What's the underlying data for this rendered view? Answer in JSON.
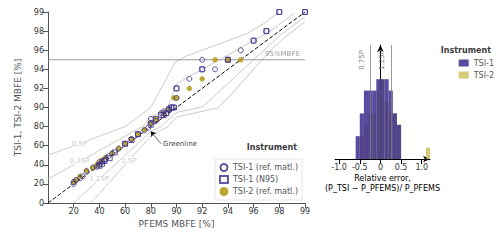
{
  "chart_data": [
    {
      "type": "scatter",
      "xlabel": "PFEMS MBFE [%]",
      "ylabel": "TSI-1, TSI-2 MBFE [%]",
      "xlim": [
        0,
        99
      ],
      "ylim": [
        0,
        99
      ],
      "xticks": [
        20,
        40,
        60,
        80,
        90,
        92,
        94,
        96,
        98,
        99
      ],
      "yticks": [
        0,
        20,
        40,
        60,
        80,
        90,
        92,
        94,
        96,
        98,
        99
      ],
      "grid": false,
      "legend": "lower right",
      "legend_title": "Instrument",
      "series": [
        {
          "name": "TSI-1 (ref. matl.)",
          "color": "#3b2d8e",
          "marker": "circle_open",
          "x": [
            20,
            20,
            22,
            25,
            27,
            30,
            35,
            38,
            40,
            40,
            42,
            44,
            45,
            47,
            50,
            55,
            60,
            65,
            70,
            75,
            78,
            80,
            80,
            82,
            84,
            85,
            86,
            87,
            88,
            89,
            90,
            90,
            91,
            92,
            92,
            93,
            94,
            95,
            96,
            97,
            98,
            99
          ],
          "values": [
            20,
            22,
            24,
            26,
            28,
            33,
            37,
            38,
            40,
            43,
            43,
            45,
            46,
            49,
            52,
            57,
            62,
            67,
            72,
            76,
            79,
            82,
            84,
            83,
            87,
            88,
            87,
            89,
            90,
            90,
            92,
            91,
            93,
            94,
            95,
            94,
            95,
            96,
            97,
            98,
            99,
            99
          ]
        },
        {
          "name": "TSI-1 (N95)",
          "color": "#3b2d8e",
          "marker": "square_open",
          "x": [
            40,
            42,
            44,
            48,
            52,
            60,
            65,
            70,
            80,
            82,
            84,
            85,
            86,
            87,
            88,
            89,
            90,
            92,
            94,
            96,
            97,
            98,
            99
          ],
          "values": [
            39,
            41,
            44,
            47,
            53,
            62,
            66,
            72,
            81,
            84,
            86,
            86,
            87,
            89,
            90,
            90,
            92,
            94,
            95,
            97,
            98,
            99,
            99
          ]
        },
        {
          "name": "TSI-2 (ref. matl.)",
          "color": "#b8a020",
          "marker": "circle",
          "x": [
            20,
            22,
            25,
            30,
            35,
            38,
            40,
            42,
            45,
            50,
            55,
            60,
            65,
            70,
            75,
            80,
            82,
            85,
            87,
            89,
            90,
            91,
            92,
            93,
            94,
            95
          ],
          "values": [
            22,
            24,
            28,
            34,
            37,
            40,
            42,
            45,
            48,
            52,
            57,
            62,
            67,
            72,
            77,
            82,
            84,
            87,
            89,
            91,
            91,
            92,
            93,
            95,
            95,
            95
          ]
        }
      ],
      "reference_lines": [
        {
          "x": [
            0,
            99
          ],
          "values": [
            0,
            99
          ],
          "color": "#000000",
          "line_style": "dashed"
        },
        {
          "label": "0.5P",
          "x": [
            0,
            98
          ],
          "values": [
            50,
            99
          ],
          "color": "#bbbbbb"
        },
        {
          "label": "0.75P",
          "x": [
            0,
            98.6
          ],
          "values": [
            25,
            98.95
          ],
          "color": "#bbbbbb"
        },
        {
          "label": "1.25P",
          "x": [
            20,
            99
          ],
          "values": [
            0,
            98.75
          ],
          "color": "#bbbbbb"
        },
        {
          "label": "1.5P",
          "x": [
            33.4,
            99
          ],
          "values": [
            0.1,
            98.5
          ],
          "color": "#bbbbbb"
        }
      ],
      "hlines": [
        {
          "y": 95,
          "color": "#808080",
          "label": "95%MBFE"
        }
      ],
      "annotations": [
        {
          "text": "Greenline",
          "x": 80,
          "line": "1.25P"
        }
      ]
    },
    {
      "type": "histogram",
      "xlabel": "Relative error,\n(P_TSI − P_PFEMS)/ P_PFEMS",
      "bins": [
        -1.0,
        -0.9,
        -0.8,
        -0.7,
        -0.6,
        -0.5,
        -0.4,
        -0.3,
        -0.2,
        -0.1,
        0.0,
        0.1,
        0.2,
        0.3,
        0.4,
        0.5,
        0.6,
        0.7,
        0.8,
        0.9,
        1.0,
        1.1,
        1.2
      ],
      "series": [
        {
          "name": "TSI-1",
          "color": "#3b2d8e",
          "values": [
            0,
            0,
            0,
            0,
            2,
            4,
            6,
            6,
            6,
            7,
            7,
            7,
            6,
            4,
            3,
            0,
            0,
            0,
            0,
            0,
            0,
            0
          ]
        },
        {
          "name": "TSI-2",
          "color": "#c8b84a",
          "values": [
            0,
            0,
            0,
            0,
            0,
            2,
            3,
            4,
            4,
            6,
            7,
            5,
            4,
            4,
            3,
            0,
            0,
            0,
            0,
            0,
            0,
            1
          ]
        }
      ],
      "xlim": [
        -1.1,
        1.2
      ],
      "xticks": [
        {
          "value": -1,
          "label": "-1.0"
        },
        -0.5,
        0,
        0.5,
        {
          "value": 1,
          "label": "1.0"
        }
      ],
      "ylim": [
        0,
        10
      ],
      "tick_labels": "x",
      "grid": false,
      "legend": "right",
      "legend_title": "Instrument",
      "vlines": [
        {
          "x": -0.25,
          "label": "0.75P",
          "color": "#808080"
        },
        {
          "x": 0.25,
          "label": "1.25P",
          "color": "#808080"
        }
      ]
    }
  ]
}
